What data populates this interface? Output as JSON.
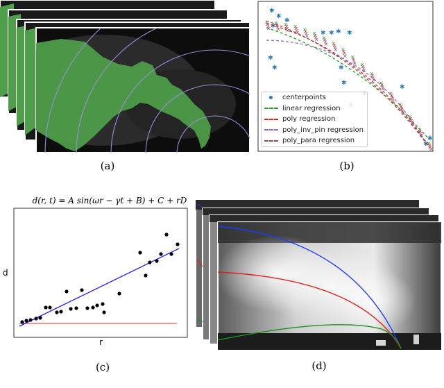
{
  "captions": {
    "a": "(a)",
    "b": "(b)",
    "c": "(c)",
    "d": "(d)"
  },
  "panel_b": {
    "legend": [
      {
        "label": "centerpoints",
        "color": "#2a7fbf",
        "style": "dot"
      },
      {
        "label": "linear regression",
        "color": "#2ca02c",
        "style": "dash"
      },
      {
        "label": "poly regression",
        "color": "#d62728",
        "style": "dash"
      },
      {
        "label": "poly_inv_pin regression",
        "color": "#9467bd",
        "style": "dash"
      },
      {
        "label": "poly_para regression",
        "color": "#8c564b",
        "style": "dash"
      }
    ]
  },
  "panel_c": {
    "equation": "d(r, t) = A sin(ωr − γt + B) + C + rD",
    "xlabel": "r",
    "ylabel": "d"
  },
  "colors": {
    "mask": "#4f9f4a",
    "fit_line": "#1a1aff",
    "baseline": "#ff4d4d",
    "curve_blue": "#1f3bff",
    "curve_red": "#e0201a",
    "curve_green": "#1f8f1f",
    "circles": "#9a8fd8"
  }
}
